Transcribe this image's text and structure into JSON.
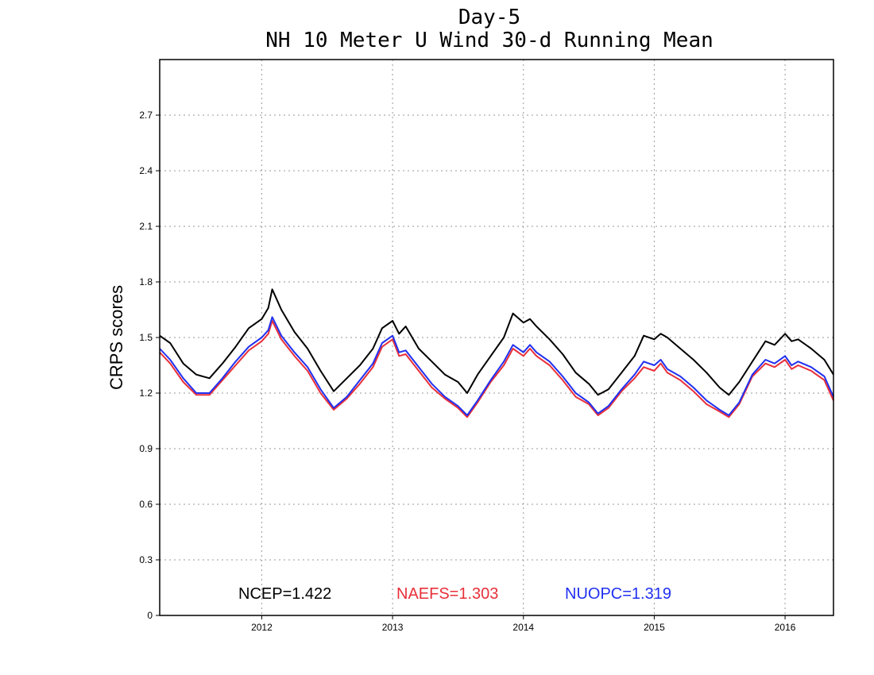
{
  "chart_data": {
    "type": "line",
    "title": "Day-5",
    "subtitle": "NH 10 Meter U Wind 30-d Running Mean",
    "ylabel": "CRPS scores",
    "xlabel": "",
    "ylim": [
      0,
      3.0
    ],
    "yticks": [
      0,
      0.3,
      0.6,
      0.9,
      1.2,
      1.5,
      1.8,
      2.1,
      2.4,
      2.7
    ],
    "ytick_labels": [
      "0",
      "0.3",
      "0.6",
      "0.9",
      "1.2",
      "1.5",
      "1.8",
      "2.1",
      "2.4",
      "2.7"
    ],
    "xlim": [
      2011.22,
      2016.37
    ],
    "xticks": [
      2012,
      2013,
      2014,
      2015,
      2016
    ],
    "xtick_labels": [
      "2012",
      "2013",
      "2014",
      "2015",
      "2016"
    ],
    "grid": true,
    "legend_position": "bottom",
    "legend": [
      {
        "text": "NCEP=1.422",
        "color": "#000000"
      },
      {
        "text": "NAEFS=1.303",
        "color": "#e8303a"
      },
      {
        "text": "NUOPC=1.319",
        "color": "#2030f0"
      }
    ],
    "x": [
      2011.22,
      2011.3,
      2011.4,
      2011.5,
      2011.6,
      2011.7,
      2011.8,
      2011.9,
      2012.0,
      2012.05,
      2012.08,
      2012.15,
      2012.25,
      2012.35,
      2012.45,
      2012.55,
      2012.65,
      2012.75,
      2012.85,
      2012.92,
      2013.0,
      2013.05,
      2013.1,
      2013.2,
      2013.3,
      2013.4,
      2013.5,
      2013.57,
      2013.65,
      2013.75,
      2013.85,
      2013.92,
      2014.0,
      2014.05,
      2014.1,
      2014.2,
      2014.3,
      2014.4,
      2014.5,
      2014.57,
      2014.65,
      2014.75,
      2014.85,
      2014.92,
      2015.0,
      2015.05,
      2015.1,
      2015.2,
      2015.3,
      2015.4,
      2015.5,
      2015.57,
      2015.65,
      2015.75,
      2015.85,
      2015.92,
      2016.0,
      2016.05,
      2016.1,
      2016.2,
      2016.3,
      2016.37
    ],
    "series": [
      {
        "name": "NCEP",
        "color": "#000000",
        "values": [
          1.51,
          1.47,
          1.36,
          1.3,
          1.28,
          1.36,
          1.45,
          1.55,
          1.6,
          1.66,
          1.76,
          1.65,
          1.53,
          1.44,
          1.32,
          1.21,
          1.28,
          1.35,
          1.44,
          1.55,
          1.59,
          1.52,
          1.56,
          1.44,
          1.37,
          1.3,
          1.26,
          1.2,
          1.3,
          1.4,
          1.5,
          1.63,
          1.58,
          1.6,
          1.56,
          1.49,
          1.41,
          1.31,
          1.25,
          1.19,
          1.22,
          1.31,
          1.4,
          1.51,
          1.49,
          1.52,
          1.5,
          1.44,
          1.38,
          1.31,
          1.23,
          1.19,
          1.26,
          1.37,
          1.48,
          1.46,
          1.52,
          1.48,
          1.49,
          1.44,
          1.38,
          1.3
        ]
      },
      {
        "name": "NAEFS",
        "color": "#e8303a",
        "values": [
          1.42,
          1.36,
          1.26,
          1.19,
          1.19,
          1.27,
          1.35,
          1.43,
          1.48,
          1.52,
          1.59,
          1.49,
          1.4,
          1.32,
          1.2,
          1.11,
          1.17,
          1.25,
          1.34,
          1.45,
          1.49,
          1.4,
          1.41,
          1.32,
          1.23,
          1.17,
          1.12,
          1.07,
          1.15,
          1.26,
          1.35,
          1.44,
          1.4,
          1.44,
          1.4,
          1.35,
          1.27,
          1.18,
          1.14,
          1.08,
          1.12,
          1.21,
          1.28,
          1.34,
          1.32,
          1.36,
          1.31,
          1.27,
          1.21,
          1.14,
          1.1,
          1.07,
          1.14,
          1.29,
          1.36,
          1.34,
          1.38,
          1.33,
          1.35,
          1.32,
          1.27,
          1.16
        ]
      },
      {
        "name": "NUOPC",
        "color": "#2030f0",
        "values": [
          1.44,
          1.38,
          1.28,
          1.2,
          1.2,
          1.28,
          1.37,
          1.45,
          1.5,
          1.54,
          1.61,
          1.51,
          1.42,
          1.34,
          1.22,
          1.12,
          1.18,
          1.27,
          1.36,
          1.47,
          1.51,
          1.42,
          1.43,
          1.34,
          1.25,
          1.18,
          1.13,
          1.08,
          1.16,
          1.27,
          1.37,
          1.46,
          1.42,
          1.46,
          1.42,
          1.37,
          1.29,
          1.2,
          1.15,
          1.09,
          1.13,
          1.22,
          1.3,
          1.37,
          1.35,
          1.38,
          1.33,
          1.29,
          1.23,
          1.16,
          1.11,
          1.08,
          1.15,
          1.3,
          1.38,
          1.36,
          1.4,
          1.35,
          1.37,
          1.34,
          1.29,
          1.18
        ]
      }
    ]
  }
}
